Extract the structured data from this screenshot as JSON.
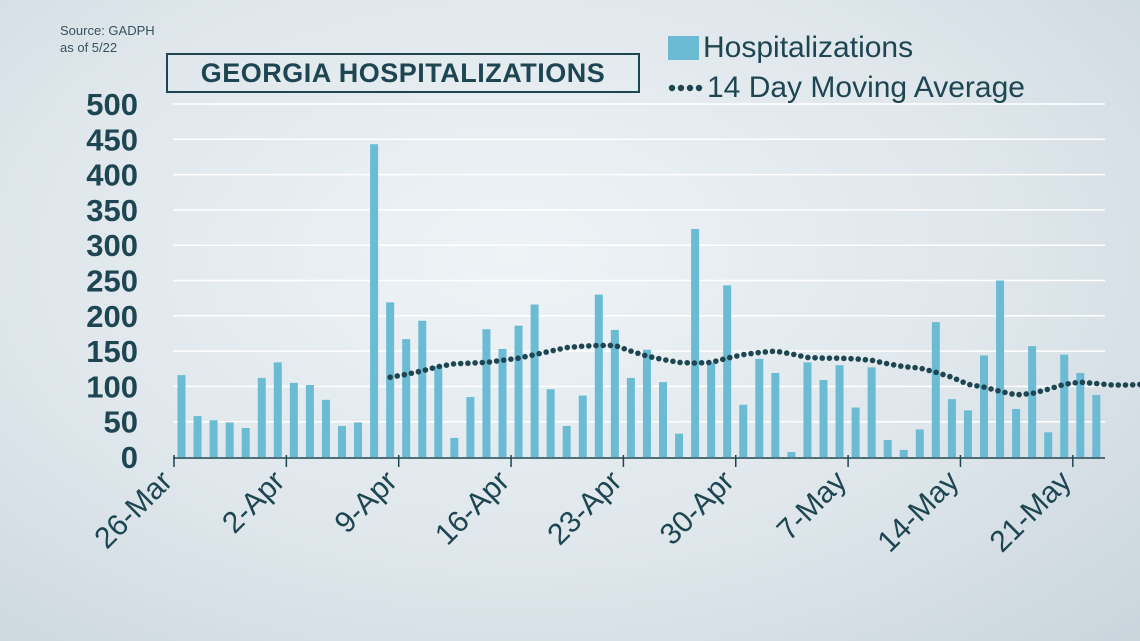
{
  "source": {
    "line1": "Source: GADPH",
    "line2": "as of 5/22"
  },
  "title": "GEORGIA HOSPITALIZATIONS",
  "colors": {
    "bar": "#6bbbd4",
    "line": "#1e4652",
    "grid": "#ffffff",
    "text": "#1e4652"
  },
  "legend": {
    "bars": "Hospitalizations",
    "line": "14 Day Moving Average"
  },
  "chart_data": {
    "type": "bar",
    "title": "GEORGIA HOSPITALIZATIONS",
    "xlabel": "",
    "ylabel": "",
    "ylim": [
      0,
      500
    ],
    "yticks": [
      0,
      50,
      100,
      150,
      200,
      250,
      300,
      350,
      400,
      450,
      500
    ],
    "xtick_labels": [
      "26-Mar",
      "2-Apr",
      "9-Apr",
      "16-Apr",
      "23-Apr",
      "30-Apr",
      "7-May",
      "14-May",
      "21-May"
    ],
    "grid": true,
    "legend_position": "top-right",
    "series": [
      {
        "name": "Hospitalizations",
        "type": "bar",
        "start_date": "26-Mar",
        "values": [
          116,
          58,
          52,
          49,
          41,
          112,
          134,
          105,
          102,
          81,
          44,
          49,
          443,
          219,
          167,
          193,
          129,
          27,
          85,
          181,
          153,
          186,
          216,
          96,
          44,
          87,
          230,
          180,
          112,
          152,
          106,
          33,
          323,
          134,
          243,
          74,
          139,
          119,
          7,
          134,
          109,
          130,
          70,
          127,
          24,
          10,
          39,
          191,
          82,
          66,
          144,
          250,
          68,
          157,
          35,
          145,
          119,
          88
        ]
      },
      {
        "name": "14 Day Moving Average",
        "type": "line",
        "start_date": "8-Apr",
        "values": [
          113,
          117,
          122,
          128,
          132,
          133,
          134,
          137,
          140,
          145,
          150,
          155,
          157,
          158,
          158,
          150,
          143,
          138,
          134,
          133,
          134,
          140,
          145,
          148,
          150,
          146,
          141,
          140,
          140,
          139,
          137,
          132,
          128,
          126,
          120,
          113,
          103,
          99,
          93,
          88,
          90,
          96,
          103,
          106,
          104,
          102,
          102,
          103
        ]
      }
    ]
  }
}
